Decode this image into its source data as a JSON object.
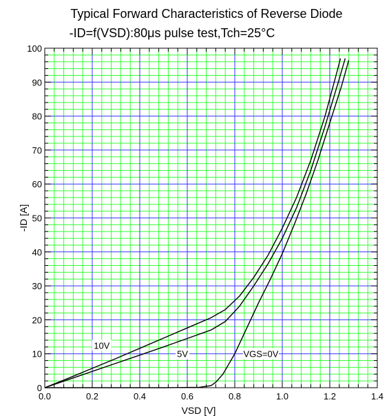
{
  "chart_data": {
    "type": "line",
    "title": "Typical Forward Characteristics of Reverse Diode",
    "subtitle": "-ID=f(VSD):80μs pulse test,Tch=25°C",
    "xlabel": "VSD [V]",
    "ylabel": "-ID [A]",
    "xlim": [
      0.0,
      1.4
    ],
    "ylim": [
      0,
      100
    ],
    "xticks": [
      "0.0",
      "0.2",
      "0.4",
      "0.6",
      "0.8",
      "1.0",
      "1.2",
      "1.4"
    ],
    "yticks": [
      "0",
      "10",
      "20",
      "30",
      "40",
      "50",
      "60",
      "70",
      "80",
      "90",
      "100"
    ],
    "grid": true,
    "colors": {
      "major_grid": "#3333ff",
      "minor_grid": "#33ff33",
      "curve": "#000000",
      "axis": "#000000"
    },
    "series": [
      {
        "name": "10V",
        "label_at": [
          0.24,
          12.5
        ],
        "points": [
          [
            0.0,
            0.0
          ],
          [
            0.1,
            2.8
          ],
          [
            0.2,
            5.7
          ],
          [
            0.3,
            8.6
          ],
          [
            0.4,
            11.6
          ],
          [
            0.5,
            14.6
          ],
          [
            0.6,
            17.6
          ],
          [
            0.7,
            20.6
          ],
          [
            0.76,
            23.0
          ],
          [
            0.82,
            27.0
          ],
          [
            0.88,
            32.5
          ],
          [
            0.94,
            39.0
          ],
          [
            1.0,
            47.0
          ],
          [
            1.06,
            56.0
          ],
          [
            1.12,
            67.0
          ],
          [
            1.18,
            80.0
          ],
          [
            1.23,
            93.0
          ],
          [
            1.245,
            97.0
          ]
        ]
      },
      {
        "name": "5V",
        "label_at": [
          0.58,
          10.0
        ],
        "points": [
          [
            0.0,
            0.0
          ],
          [
            0.1,
            2.4
          ],
          [
            0.2,
            4.8
          ],
          [
            0.3,
            7.2
          ],
          [
            0.4,
            9.6
          ],
          [
            0.5,
            12.0
          ],
          [
            0.6,
            14.5
          ],
          [
            0.7,
            17.0
          ],
          [
            0.76,
            19.5
          ],
          [
            0.82,
            24.0
          ],
          [
            0.88,
            30.0
          ],
          [
            0.94,
            36.5
          ],
          [
            1.0,
            44.0
          ],
          [
            1.06,
            53.0
          ],
          [
            1.12,
            64.0
          ],
          [
            1.18,
            77.0
          ],
          [
            1.24,
            91.0
          ],
          [
            1.265,
            97.0
          ]
        ]
      },
      {
        "name": "VGS=0V",
        "label_at": [
          0.91,
          10.0
        ],
        "points": [
          [
            0.0,
            0.0
          ],
          [
            0.5,
            0.0
          ],
          [
            0.65,
            0.1
          ],
          [
            0.7,
            0.6
          ],
          [
            0.72,
            1.6
          ],
          [
            0.75,
            4.0
          ],
          [
            0.8,
            10.0
          ],
          [
            0.85,
            17.5
          ],
          [
            0.9,
            25.0
          ],
          [
            0.95,
            32.0
          ],
          [
            1.0,
            39.5
          ],
          [
            1.05,
            48.0
          ],
          [
            1.1,
            57.0
          ],
          [
            1.15,
            67.0
          ],
          [
            1.2,
            78.0
          ],
          [
            1.25,
            89.0
          ],
          [
            1.28,
            96.5
          ]
        ]
      }
    ]
  }
}
